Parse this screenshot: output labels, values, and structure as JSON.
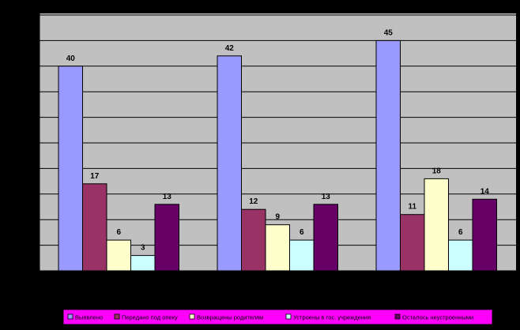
{
  "chart_data": {
    "type": "bar",
    "title": "",
    "xlabel": "",
    "ylabel": "",
    "categories": [
      "",
      "",
      ""
    ],
    "ylim": [
      0,
      45
    ],
    "grid": true,
    "gridlines": [
      0,
      5,
      10,
      15,
      20,
      25,
      30,
      35,
      40,
      45,
      50
    ],
    "plot_background": "#c0c0c0",
    "legend_position": "bottom",
    "legend_background": "#ff00ff",
    "series": [
      {
        "name": "Выявлено",
        "color": "#9999ff",
        "values": [
          40,
          42,
          45
        ]
      },
      {
        "name": "Передано под опеку",
        "color": "#993366",
        "values": [
          17,
          12,
          11
        ]
      },
      {
        "name": "Возвращены родителям",
        "color": "#ffffcc",
        "values": [
          6,
          9,
          18
        ]
      },
      {
        "name": "Устроены в гос. учреждения",
        "color": "#ccffff",
        "values": [
          3,
          6,
          6
        ]
      },
      {
        "name": "Осталось неустроенными",
        "color": "#660066",
        "values": [
          13,
          13,
          14
        ]
      }
    ]
  }
}
